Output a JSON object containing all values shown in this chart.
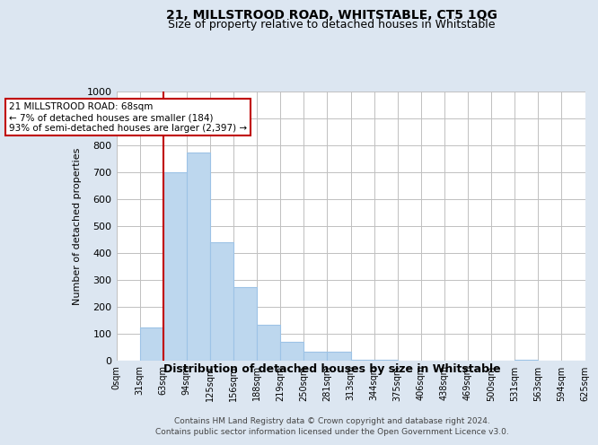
{
  "title": "21, MILLSTROOD ROAD, WHITSTABLE, CT5 1QG",
  "subtitle": "Size of property relative to detached houses in Whitstable",
  "xlabel": "Distribution of detached houses by size in Whitstable",
  "ylabel": "Number of detached properties",
  "bins": [
    "0sqm",
    "31sqm",
    "63sqm",
    "94sqm",
    "125sqm",
    "156sqm",
    "188sqm",
    "219sqm",
    "250sqm",
    "281sqm",
    "313sqm",
    "344sqm",
    "375sqm",
    "406sqm",
    "438sqm",
    "469sqm",
    "500sqm",
    "531sqm",
    "563sqm",
    "594sqm",
    "625sqm"
  ],
  "values": [
    0,
    125,
    700,
    775,
    440,
    275,
    135,
    70,
    35,
    35,
    5,
    5,
    0,
    0,
    0,
    0,
    0,
    5,
    0,
    0
  ],
  "property_size": 68,
  "property_bin_index": 2,
  "annotation_line": "21 MILLSTROOD ROAD: 68sqm",
  "annotation_line2": "← 7% of detached houses are smaller (184)",
  "annotation_line3": "93% of semi-detached houses are larger (2,397) →",
  "bar_color": "#bdd7ee",
  "bar_edge_color": "#9dc3e6",
  "vline_color": "#c00000",
  "annotation_box_color": "#ffffff",
  "annotation_box_edge": "#c00000",
  "bg_color": "#dce6f1",
  "plot_bg_color": "#ffffff",
  "grid_color": "#c0c0c0",
  "footer_line1": "Contains HM Land Registry data © Crown copyright and database right 2024.",
  "footer_line2": "Contains public sector information licensed under the Open Government Licence v3.0.",
  "ylim": [
    0,
    1000
  ],
  "yticks": [
    0,
    100,
    200,
    300,
    400,
    500,
    600,
    700,
    800,
    900,
    1000
  ]
}
